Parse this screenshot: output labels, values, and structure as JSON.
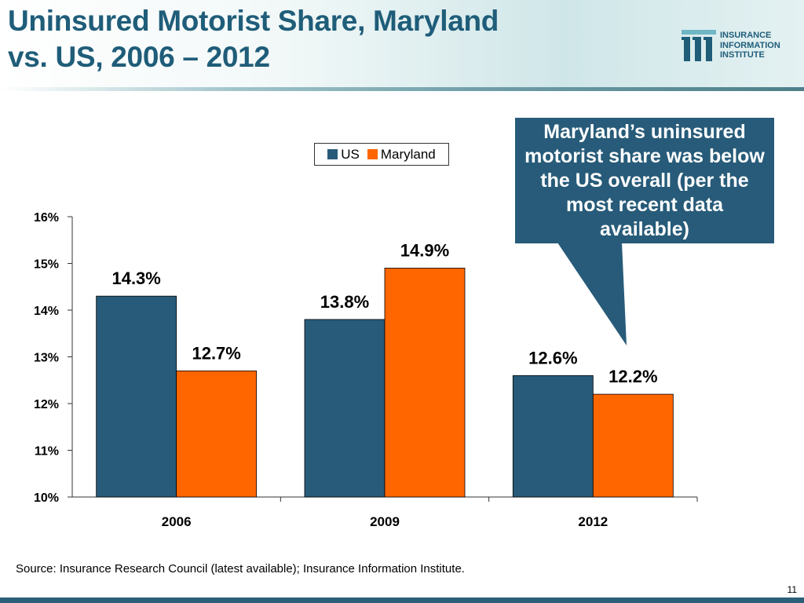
{
  "title": {
    "line1": "Uninsured Motorist Share, Maryland",
    "line2": "vs. US, 2006 – 2012"
  },
  "logo": {
    "line1": "INSURANCE",
    "line2": "INFORMATION",
    "line3": "INSTITUTE"
  },
  "callout": {
    "text": "Maryland’s uninsured motorist share was below the US overall (per the most recent data available)"
  },
  "source": "Source: Insurance Research Council (latest available); Insurance Information Institute.",
  "page_number": "11",
  "colors": {
    "title": "#1f5d79",
    "us": "#275b79",
    "maryland": "#ff6600",
    "callout_bg": "#275b79"
  },
  "chart_data": {
    "type": "bar",
    "title": "",
    "xlabel": "",
    "ylabel": "",
    "categories": [
      "2006",
      "2009",
      "2012"
    ],
    "series": [
      {
        "name": "US",
        "values": [
          14.3,
          13.8,
          12.6
        ],
        "labels": [
          "14.3%",
          "13.8%",
          "12.6%"
        ]
      },
      {
        "name": "Maryland",
        "values": [
          12.7,
          14.9,
          12.2
        ],
        "labels": [
          "12.7%",
          "14.9%",
          "12.2%"
        ]
      }
    ],
    "ylim": [
      10,
      16
    ],
    "yticks": [
      "10%",
      "11%",
      "12%",
      "13%",
      "14%",
      "15%",
      "16%"
    ],
    "legend_position": "top"
  }
}
